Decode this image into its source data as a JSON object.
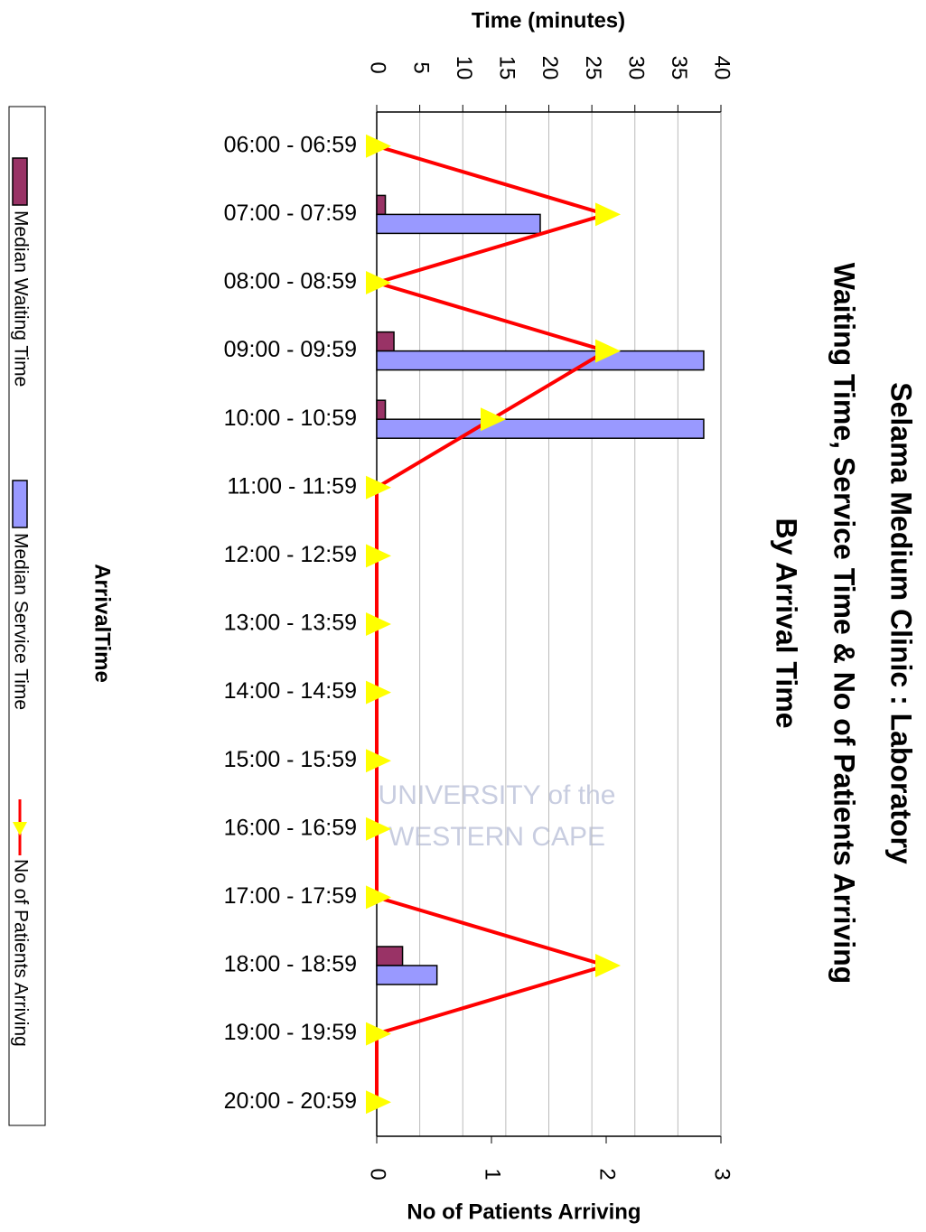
{
  "chart_data": {
    "type": "bar",
    "orientation": "horizontal",
    "title": [
      "Selama Medium Clinic : Laboratory",
      "Waiting Time, Service Time & No of Patients Arriving",
      "By Arrival Time"
    ],
    "xlabel": "ArrivalTime",
    "ylabel": "Time (minutes)",
    "y2label": "No of Patients Arriving",
    "categories": [
      "06:00 - 06:59",
      "07:00 - 07:59",
      "08:00 - 08:59",
      "09:00 - 09:59",
      "10:00 - 10:59",
      "11:00 - 11:59",
      "12:00 - 12:59",
      "13:00 - 13:59",
      "14:00 - 14:59",
      "15:00 - 15:59",
      "16:00 - 16:59",
      "17:00 - 17:59",
      "18:00 - 18:59",
      "19:00 - 19:59",
      "20:00 - 20:59"
    ],
    "series": [
      {
        "name": "Median Waiting Time",
        "type": "bar",
        "color": "#993366",
        "values": [
          0,
          1,
          0,
          2,
          1,
          0,
          0,
          0,
          0,
          0,
          0,
          0,
          3,
          0,
          0
        ]
      },
      {
        "name": "Median Service Time",
        "type": "bar",
        "color": "#9999ff",
        "values": [
          0,
          19,
          0,
          38,
          38,
          0,
          0,
          0,
          0,
          0,
          0,
          0,
          7,
          0,
          0
        ]
      },
      {
        "name": "No of Patients Arriving",
        "type": "line",
        "axis": "y2",
        "color": "#ff0000",
        "marker_color": "#ffff00",
        "values": [
          0,
          2,
          0,
          2,
          1,
          0,
          0,
          0,
          0,
          0,
          0,
          0,
          2,
          0,
          0
        ]
      }
    ],
    "ylim": [
      0,
      40
    ],
    "yticks": [
      0,
      5,
      10,
      15,
      20,
      25,
      30,
      35,
      40
    ],
    "y2lim": [
      0,
      3
    ],
    "y2ticks": [
      0,
      1,
      2,
      3
    ],
    "grid": true,
    "legend": "left",
    "watermark": [
      "UNIVERSITY of the",
      "WESTERN CAPE"
    ]
  }
}
